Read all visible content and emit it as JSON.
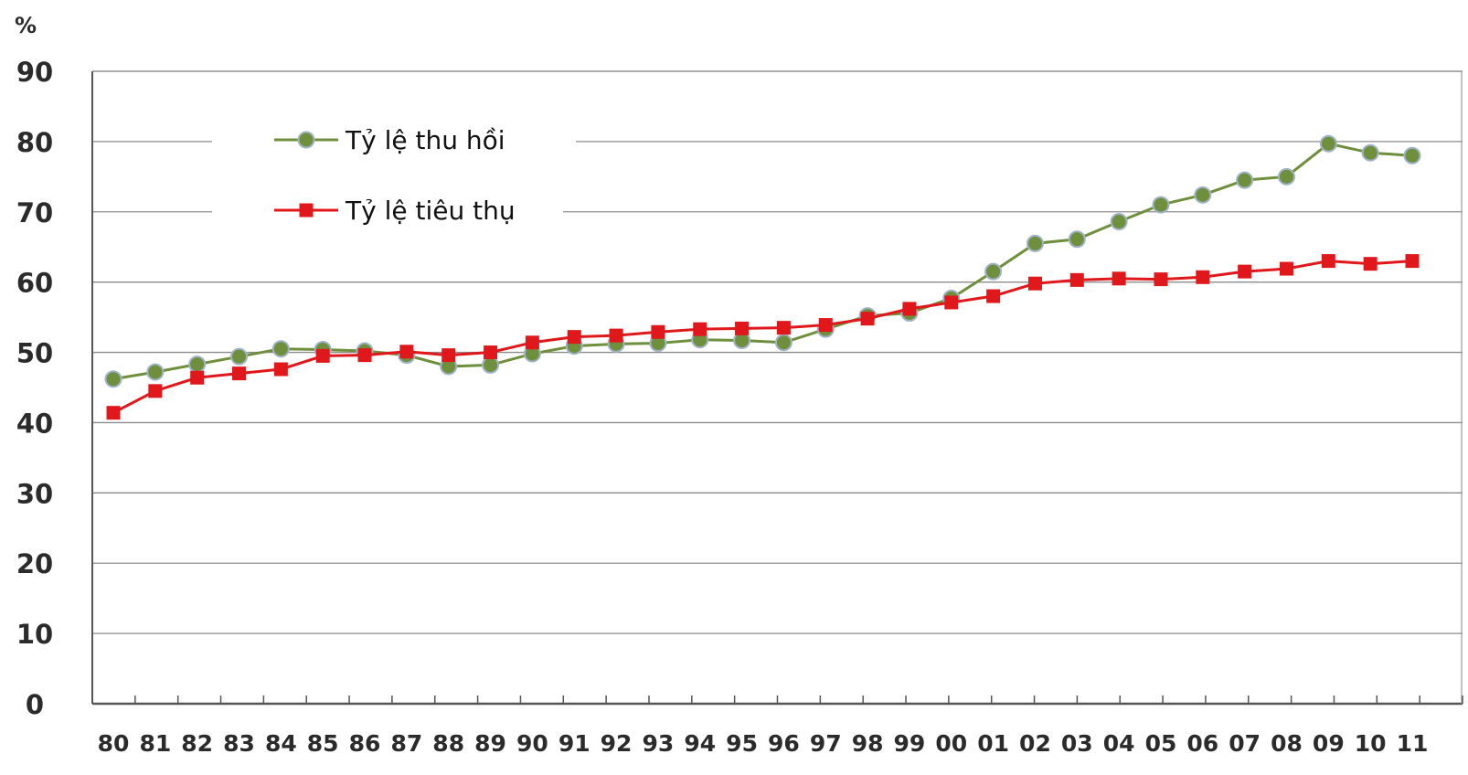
{
  "chart_data": {
    "type": "line",
    "y_unit": "%",
    "ylim": [
      0,
      90
    ],
    "yticks": [
      0,
      10,
      20,
      30,
      40,
      50,
      60,
      70,
      80,
      90
    ],
    "grid": true,
    "legend_position": "top-left",
    "categories": [
      "80",
      "81",
      "82",
      "83",
      "84",
      "85",
      "86",
      "87",
      "88",
      "89",
      "90",
      "91",
      "92",
      "93",
      "94",
      "95",
      "96",
      "97",
      "98",
      "99",
      "00",
      "01",
      "02",
      "03",
      "04",
      "05",
      "06",
      "07",
      "08",
      "09",
      "10",
      "11"
    ],
    "series": [
      {
        "name": "Tỷ lệ thu hồi",
        "color": "#6f8f3c",
        "marker": "circle",
        "values": [
          46.2,
          47.2,
          48.3,
          49.4,
          50.5,
          50.4,
          50.2,
          49.6,
          48.0,
          48.2,
          49.8,
          50.9,
          51.2,
          51.3,
          51.8,
          51.7,
          51.4,
          53.3,
          55.2,
          55.6,
          57.7,
          61.5,
          65.5,
          66.1,
          68.6,
          71.0,
          72.4,
          74.5,
          75.0,
          79.7,
          78.4,
          78.0
        ]
      },
      {
        "name": "Tỷ lệ tiêu thụ",
        "color": "#e0181b",
        "marker": "square",
        "values": [
          41.4,
          44.5,
          46.4,
          47.0,
          47.6,
          49.5,
          49.6,
          50.1,
          49.6,
          50.0,
          51.4,
          52.2,
          52.4,
          52.9,
          53.3,
          53.4,
          53.5,
          53.9,
          54.8,
          56.2,
          57.1,
          58.0,
          59.8,
          60.3,
          60.5,
          60.4,
          60.7,
          61.5,
          61.9,
          63.0,
          62.6,
          63.0
        ]
      }
    ]
  }
}
